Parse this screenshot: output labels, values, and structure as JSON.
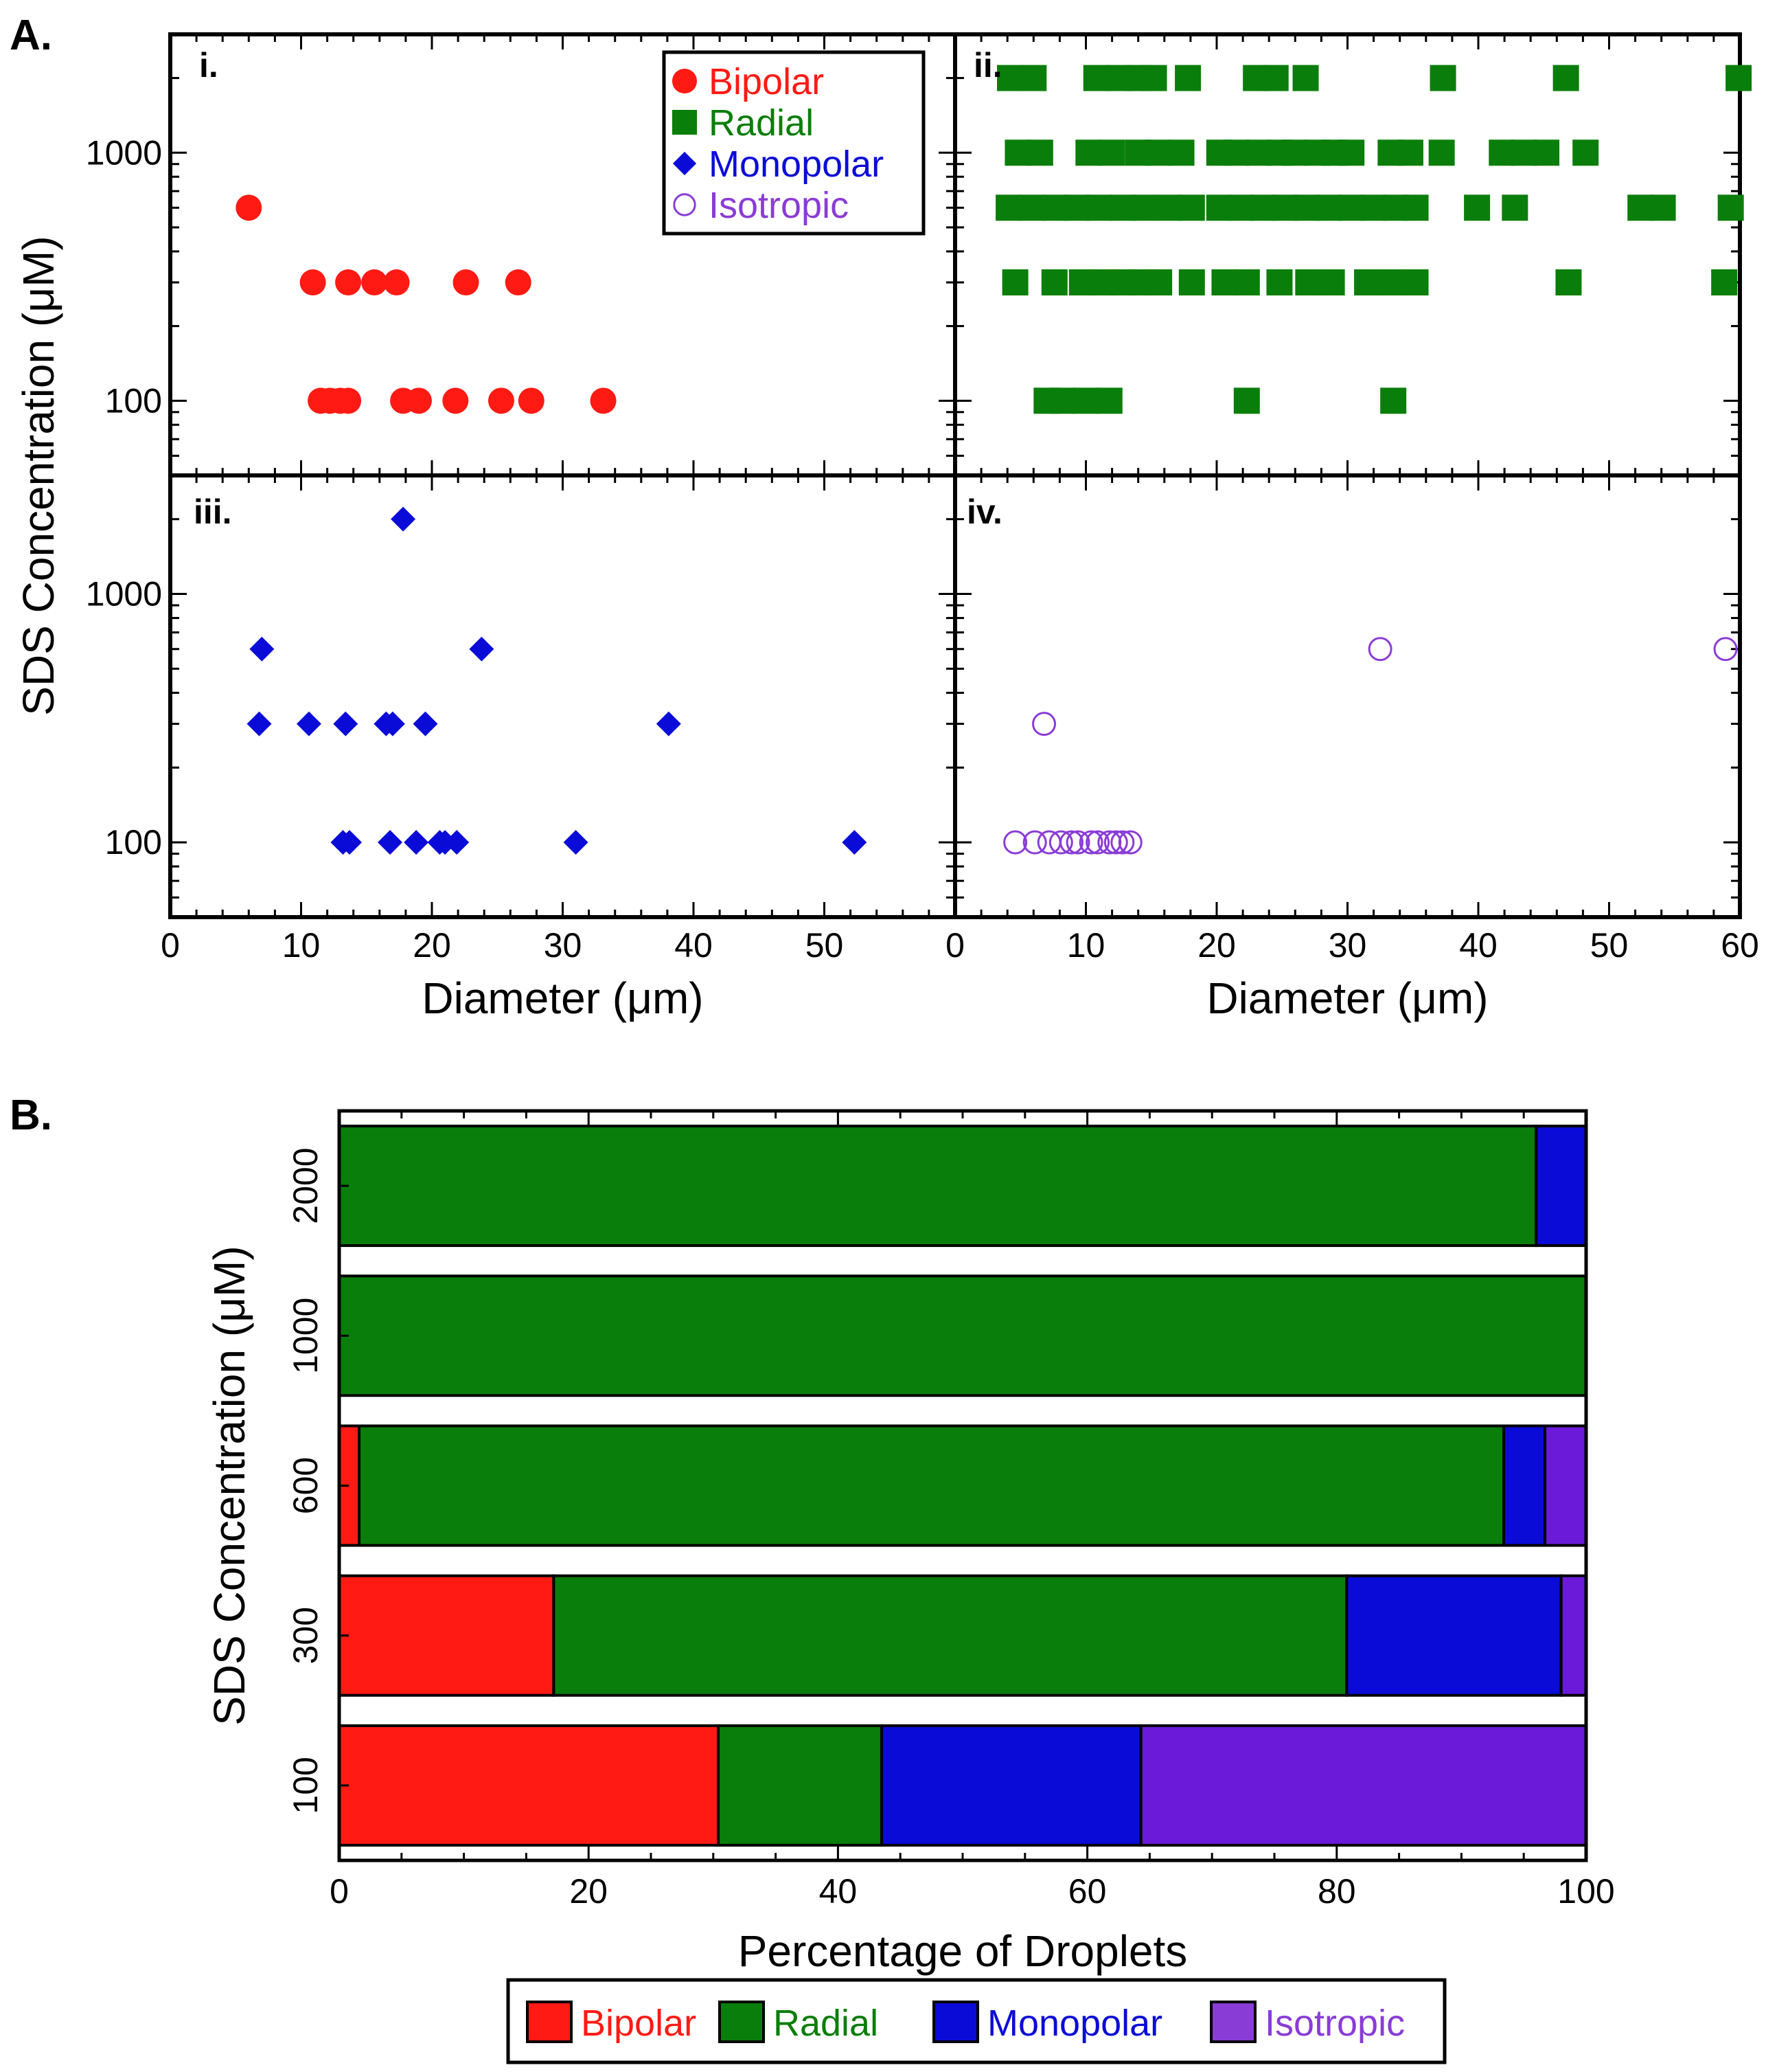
{
  "section_labels": {
    "a": "A.",
    "b": "B."
  },
  "colors": {
    "bipolar": "#ff1a14",
    "radial": "#0a7e0a",
    "monopolar": "#0b0bd8",
    "isotropic": "#6a1ad8",
    "isotropic_marker": "#8a3cd6"
  },
  "legend_a": [
    {
      "label": "Bipolar",
      "marker": "filled-circle",
      "color": "#ff1a14"
    },
    {
      "label": "Radial",
      "marker": "filled-square",
      "color": "#0a7e0a"
    },
    {
      "label": "Monopolar",
      "marker": "filled-diamond",
      "color": "#0b0bd8"
    },
    {
      "label": "Isotropic",
      "marker": "open-circle",
      "color": "#8a3cd6"
    }
  ],
  "legend_b": [
    {
      "label": "Bipolar",
      "color": "#ff1a14"
    },
    {
      "label": "Radial",
      "color": "#0a7e0a"
    },
    {
      "label": "Monopolar",
      "color": "#0b0bd8"
    },
    {
      "label": "Isotropic",
      "color": "#8a3cd6"
    }
  ],
  "chart_data": [
    {
      "type": "scatter",
      "panel": "A",
      "xlabel": "Diameter (μm)",
      "ylabel": "SDS Concentration (μM)",
      "xlim": [
        0,
        60
      ],
      "ylim": [
        50,
        3000
      ],
      "yscale": "log",
      "xticks": [
        0,
        10,
        20,
        30,
        40,
        50,
        60
      ],
      "yticks": [
        100,
        1000
      ],
      "subplots": [
        {
          "label": "i.",
          "series": "Bipolar",
          "marker": "filled-circle",
          "points": [
            {
              "x": 6,
              "y": 600
            },
            {
              "x": 10.9,
              "y": 300
            },
            {
              "x": 13.6,
              "y": 300
            },
            {
              "x": 15.6,
              "y": 300
            },
            {
              "x": 17.3,
              "y": 300
            },
            {
              "x": 22.6,
              "y": 300
            },
            {
              "x": 26.6,
              "y": 300
            },
            {
              "x": 11.5,
              "y": 100
            },
            {
              "x": 12.2,
              "y": 100
            },
            {
              "x": 13,
              "y": 100
            },
            {
              "x": 13.6,
              "y": 100
            },
            {
              "x": 17.8,
              "y": 100
            },
            {
              "x": 19,
              "y": 100
            },
            {
              "x": 21.8,
              "y": 100
            },
            {
              "x": 25.3,
              "y": 100
            },
            {
              "x": 27.6,
              "y": 100
            },
            {
              "x": 33.1,
              "y": 100
            }
          ]
        },
        {
          "label": "ii.",
          "series": "Radial",
          "marker": "filled-square",
          "points": [
            {
              "x": 4.2,
              "y": 2000
            },
            {
              "x": 6,
              "y": 2000
            },
            {
              "x": 10.8,
              "y": 2000
            },
            {
              "x": 12.5,
              "y": 2000
            },
            {
              "x": 14,
              "y": 2000
            },
            {
              "x": 15.2,
              "y": 2000
            },
            {
              "x": 17.8,
              "y": 2000
            },
            {
              "x": 23,
              "y": 2000
            },
            {
              "x": 24.5,
              "y": 2000
            },
            {
              "x": 26.8,
              "y": 2000
            },
            {
              "x": 37.3,
              "y": 2000
            },
            {
              "x": 46.7,
              "y": 2000
            },
            {
              "x": 59.9,
              "y": 2000
            },
            {
              "x": 4.8,
              "y": 1000
            },
            {
              "x": 6.5,
              "y": 1000
            },
            {
              "x": 10.2,
              "y": 1000
            },
            {
              "x": 12,
              "y": 1000
            },
            {
              "x": 14,
              "y": 1000
            },
            {
              "x": 15.5,
              "y": 1000
            },
            {
              "x": 17.3,
              "y": 1000
            },
            {
              "x": 20.2,
              "y": 1000
            },
            {
              "x": 21.5,
              "y": 1000
            },
            {
              "x": 23.2,
              "y": 1000
            },
            {
              "x": 24.8,
              "y": 1000
            },
            {
              "x": 26,
              "y": 1000
            },
            {
              "x": 27.7,
              "y": 1000
            },
            {
              "x": 29,
              "y": 1000
            },
            {
              "x": 30.3,
              "y": 1000
            },
            {
              "x": 33.3,
              "y": 1000
            },
            {
              "x": 34.8,
              "y": 1000
            },
            {
              "x": 37.2,
              "y": 1000
            },
            {
              "x": 41.8,
              "y": 1000
            },
            {
              "x": 43.5,
              "y": 1000
            },
            {
              "x": 45.2,
              "y": 1000
            },
            {
              "x": 48.2,
              "y": 1000
            },
            {
              "x": 4.1,
              "y": 600
            },
            {
              "x": 5.9,
              "y": 600
            },
            {
              "x": 7.7,
              "y": 600
            },
            {
              "x": 9.3,
              "y": 600
            },
            {
              "x": 11,
              "y": 600
            },
            {
              "x": 12.8,
              "y": 600
            },
            {
              "x": 14.5,
              "y": 600
            },
            {
              "x": 16.4,
              "y": 600
            },
            {
              "x": 18.1,
              "y": 600
            },
            {
              "x": 20.2,
              "y": 600
            },
            {
              "x": 21.9,
              "y": 600
            },
            {
              "x": 23.6,
              "y": 600
            },
            {
              "x": 25.2,
              "y": 600
            },
            {
              "x": 26.9,
              "y": 600
            },
            {
              "x": 28.6,
              "y": 600
            },
            {
              "x": 30.3,
              "y": 600
            },
            {
              "x": 32,
              "y": 600
            },
            {
              "x": 33.7,
              "y": 600
            },
            {
              "x": 35.2,
              "y": 600
            },
            {
              "x": 39.9,
              "y": 600
            },
            {
              "x": 42.8,
              "y": 600
            },
            {
              "x": 52.4,
              "y": 600
            },
            {
              "x": 54.1,
              "y": 600
            },
            {
              "x": 59.3,
              "y": 600
            },
            {
              "x": 4.6,
              "y": 300
            },
            {
              "x": 7.6,
              "y": 300
            },
            {
              "x": 9.7,
              "y": 300
            },
            {
              "x": 11.3,
              "y": 300
            },
            {
              "x": 12.8,
              "y": 300
            },
            {
              "x": 14.2,
              "y": 300
            },
            {
              "x": 15.6,
              "y": 300
            },
            {
              "x": 18.1,
              "y": 300
            },
            {
              "x": 20.6,
              "y": 300
            },
            {
              "x": 22.3,
              "y": 300
            },
            {
              "x": 24.8,
              "y": 300
            },
            {
              "x": 27,
              "y": 300
            },
            {
              "x": 28.8,
              "y": 300
            },
            {
              "x": 31.5,
              "y": 300
            },
            {
              "x": 33.4,
              "y": 300
            },
            {
              "x": 35.2,
              "y": 300
            },
            {
              "x": 46.9,
              "y": 300
            },
            {
              "x": 58.8,
              "y": 300
            },
            {
              "x": 7,
              "y": 100
            },
            {
              "x": 8.2,
              "y": 100
            },
            {
              "x": 10,
              "y": 100
            },
            {
              "x": 11.8,
              "y": 100
            },
            {
              "x": 22.3,
              "y": 100
            },
            {
              "x": 33.5,
              "y": 100
            }
          ]
        },
        {
          "label": "iii.",
          "series": "Monopolar",
          "marker": "filled-diamond",
          "points": [
            {
              "x": 17.8,
              "y": 2000
            },
            {
              "x": 7,
              "y": 600
            },
            {
              "x": 23.8,
              "y": 600
            },
            {
              "x": 6.8,
              "y": 300
            },
            {
              "x": 10.6,
              "y": 300
            },
            {
              "x": 13.4,
              "y": 300
            },
            {
              "x": 16.5,
              "y": 300
            },
            {
              "x": 17,
              "y": 300
            },
            {
              "x": 19.5,
              "y": 300
            },
            {
              "x": 38.1,
              "y": 300
            },
            {
              "x": 13.2,
              "y": 100
            },
            {
              "x": 13.7,
              "y": 100
            },
            {
              "x": 16.8,
              "y": 100
            },
            {
              "x": 18.8,
              "y": 100
            },
            {
              "x": 20.6,
              "y": 100
            },
            {
              "x": 21,
              "y": 100
            },
            {
              "x": 21.9,
              "y": 100
            },
            {
              "x": 31,
              "y": 100
            },
            {
              "x": 52.3,
              "y": 100
            }
          ]
        },
        {
          "label": "iv.",
          "series": "Isotropic",
          "marker": "open-circle",
          "points": [
            {
              "x": 32.5,
              "y": 600
            },
            {
              "x": 58.9,
              "y": 600
            },
            {
              "x": 6.8,
              "y": 300
            },
            {
              "x": 4.6,
              "y": 100
            },
            {
              "x": 6.1,
              "y": 100
            },
            {
              "x": 7.2,
              "y": 100
            },
            {
              "x": 8.1,
              "y": 100
            },
            {
              "x": 8.9,
              "y": 100
            },
            {
              "x": 9.4,
              "y": 100
            },
            {
              "x": 10.4,
              "y": 100
            },
            {
              "x": 10.9,
              "y": 100
            },
            {
              "x": 11.8,
              "y": 100
            },
            {
              "x": 12.3,
              "y": 100
            },
            {
              "x": 12.8,
              "y": 100
            },
            {
              "x": 13.4,
              "y": 100
            }
          ]
        }
      ]
    },
    {
      "type": "bar",
      "panel": "B",
      "orientation": "horizontal",
      "stacked": true,
      "xlabel": "Percentage of Droplets",
      "ylabel": "SDS Concentration (μM)",
      "xlim": [
        0,
        100
      ],
      "xticks": [
        0,
        20,
        40,
        60,
        80,
        100
      ],
      "categories": [
        "2000",
        "1000",
        "600",
        "300",
        "100"
      ],
      "series": [
        {
          "name": "Bipolar",
          "values": [
            0,
            0,
            1.6,
            17.2,
            30.4
          ]
        },
        {
          "name": "Radial",
          "values": [
            96,
            100,
            91.8,
            63.6,
            13.1
          ]
        },
        {
          "name": "Monopolar",
          "values": [
            4,
            0,
            3.3,
            17.2,
            20.8
          ]
        },
        {
          "name": "Isotropic",
          "values": [
            0,
            0,
            3.3,
            2.0,
            35.7
          ]
        }
      ]
    }
  ]
}
